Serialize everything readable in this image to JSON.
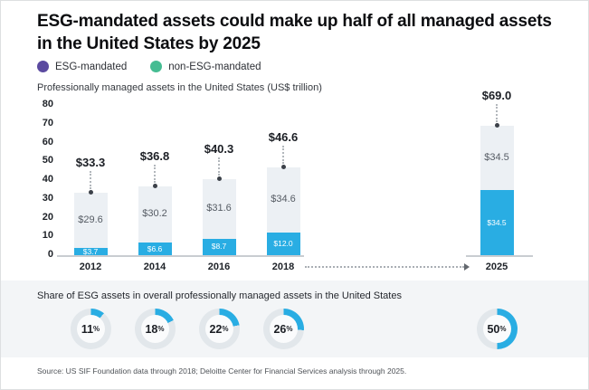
{
  "header": {
    "title": "ESG-mandated assets could make up half of all managed assets in the United States by 2025",
    "legend": [
      {
        "label": "ESG-mandated",
        "color": "#5b4aa0",
        "icon": "purple-dot-icon"
      },
      {
        "label": "non-ESG-mandated",
        "color": "#45bc92",
        "icon": "green-dot-icon"
      }
    ]
  },
  "colors": {
    "esg_blue": "#29ade3",
    "non_esg_light": "#ecf0f4",
    "donut_track": "#e2e7eb",
    "panel_bg": "#f3f5f7",
    "marker": "#3c4149"
  },
  "chart_data": [
    {
      "type": "bar",
      "stacked": true,
      "title": "Professionally managed assets in the United States (US$ trillion)",
      "categories": [
        "2012",
        "2014",
        "2016",
        "2018",
        "2025"
      ],
      "series": [
        {
          "name": "ESG-mandated",
          "values": [
            3.7,
            6.6,
            8.7,
            12.0,
            34.5
          ],
          "labels": [
            "$3.7",
            "$6.6",
            "$8.7",
            "$12.0",
            "$34.5"
          ]
        },
        {
          "name": "non-ESG-mandated",
          "values": [
            29.6,
            30.2,
            31.6,
            34.6,
            34.5
          ],
          "labels": [
            "$29.6",
            "$30.2",
            "$31.6",
            "$34.6",
            "$34.5"
          ]
        }
      ],
      "totals": [
        33.3,
        36.8,
        40.3,
        46.6,
        69.0
      ],
      "total_labels": [
        "$33.3",
        "$36.8",
        "$40.3",
        "$46.6",
        "$69.0"
      ],
      "ylim": [
        0,
        80
      ],
      "yticks": [
        0,
        10,
        20,
        30,
        40,
        50,
        60,
        70,
        80
      ],
      "grid": false,
      "legend_position": "top-left",
      "x_axis_gap_note": "dotted arrow between 2018 and 2025"
    },
    {
      "type": "donut",
      "title": "Share of ESG assets in overall professionally managed assets in the United States",
      "categories": [
        "2012",
        "2014",
        "2016",
        "2018",
        "2025"
      ],
      "values": [
        11,
        18,
        22,
        26,
        50
      ],
      "unit": "%"
    }
  ],
  "source": "Source: US SIF Foundation data through 2018; Deloitte Center for Financial Services analysis through 2025."
}
